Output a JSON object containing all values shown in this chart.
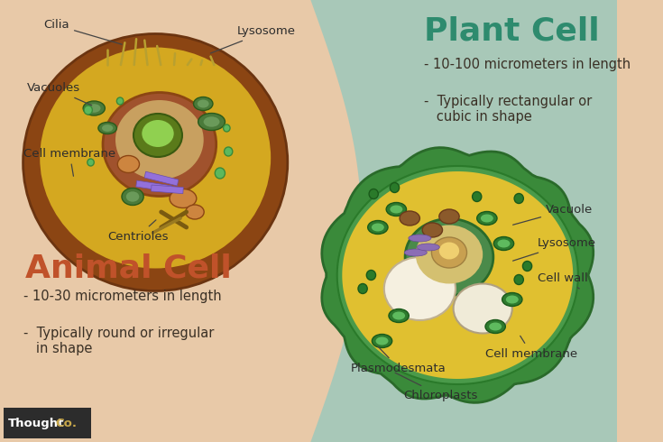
{
  "bg_left_color": "#E8C9A8",
  "bg_right_color": "#A8C8B8",
  "title_plant": "Plant Cell",
  "title_animal": "Animal Cell",
  "title_plant_color": "#2E8B6E",
  "title_animal_color": "#C0522A",
  "plant_facts_1": "- 10-100 micrometers in length",
  "plant_facts_2": "-  Typically rectangular or\n   cubic in shape",
  "animal_facts_1": "- 10-30 micrometers in length",
  "animal_facts_2": "-  Typically round or irregular\n   in shape",
  "text_color": "#3A3025",
  "thoughtco_bg": "#2C2C2C",
  "thoughtco_text_white": "Thought",
  "thoughtco_text_gold": "Co.",
  "thoughtco_gold": "#C8A84B"
}
